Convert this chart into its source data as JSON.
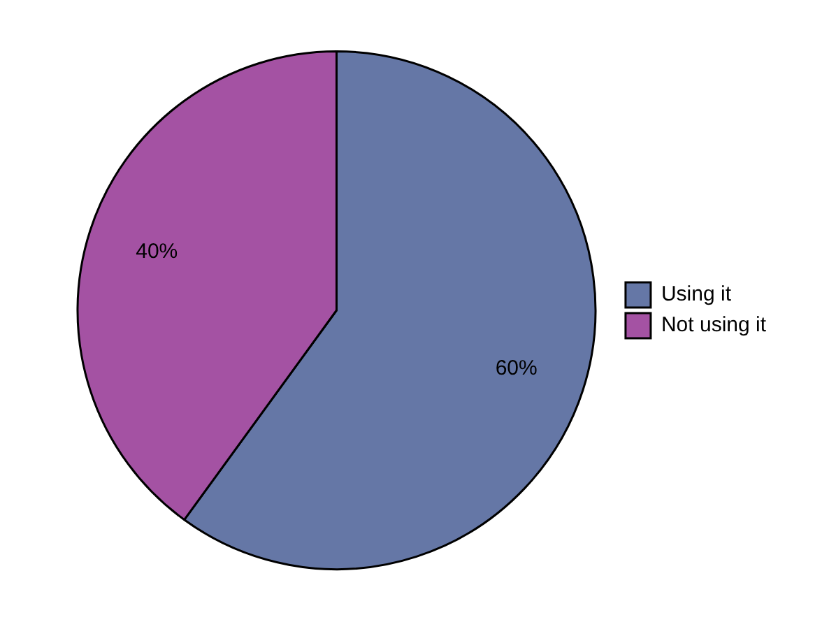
{
  "chart_data": {
    "type": "pie",
    "categories": [
      "Using it",
      "Not using it"
    ],
    "values": [
      60,
      40
    ],
    "colors": [
      "#6577a6",
      "#a452a3"
    ],
    "value_labels": [
      "60%",
      "40%"
    ],
    "legend": "right"
  }
}
